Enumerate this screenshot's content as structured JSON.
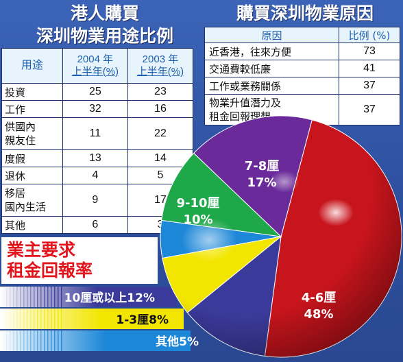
{
  "titles": {
    "left_line1": "港人購買",
    "left_line2": "深圳物業用途比例",
    "right": "購買深圳物業原因"
  },
  "usage_table": {
    "header_use": "用途",
    "header_2004": [
      "2004 年",
      "上半年(%)"
    ],
    "header_2003": [
      "2003 年",
      "上半年(%)"
    ],
    "rows": [
      {
        "label": [
          "投資"
        ],
        "v2004": "25",
        "v2003": "23"
      },
      {
        "label": [
          "工作"
        ],
        "v2004": "32",
        "v2003": "16"
      },
      {
        "label": [
          "供國內",
          "親友住"
        ],
        "v2004": "11",
        "v2003": "22"
      },
      {
        "label": [
          "度假"
        ],
        "v2004": "13",
        "v2003": "14"
      },
      {
        "label": [
          "退休"
        ],
        "v2004": "4",
        "v2003": "5"
      },
      {
        "label": [
          "移居",
          "國內生活"
        ],
        "v2004": "9",
        "v2003": "17"
      },
      {
        "label": [
          "其他"
        ],
        "v2004": "6",
        "v2003": "3"
      }
    ]
  },
  "reason_table": {
    "header_reason": "原因",
    "header_ratio": "比例 (%)",
    "rows": [
      {
        "label": [
          "近香港，往來方便"
        ],
        "value": "73"
      },
      {
        "label": [
          "交通費較低廉"
        ],
        "value": "41"
      },
      {
        "label": [
          "工作或業務關係"
        ],
        "value": "37"
      },
      {
        "label": [
          "物業升值潛力及",
          "租金回報理想"
        ],
        "value": "37"
      }
    ]
  },
  "owner_panel": {
    "line1": "業主要求",
    "line2": "租金回報率"
  },
  "chart_data": {
    "type": "pie",
    "slices": [
      {
        "label": "4-6厘",
        "value": 48,
        "text": "48%",
        "color": "#c8141c"
      },
      {
        "label": "10厘或以上",
        "value": 12,
        "text": "12%",
        "color": "#3a3a9a"
      },
      {
        "label": "1-3厘",
        "value": 8,
        "text": "8%",
        "color": "#f2e600"
      },
      {
        "label": "其他",
        "value": 5,
        "text": "5%",
        "color": "#1e88d8"
      },
      {
        "label": "9-10厘",
        "value": 10,
        "text": "10%",
        "color": "#1fa84a"
      },
      {
        "label": "7-8厘",
        "value": 17,
        "text": "17%",
        "color": "#6a2a9a"
      }
    ],
    "bands": [
      {
        "text": "10厘或以上12%",
        "color": "#3a3a9a"
      },
      {
        "text": "1-3厘8%",
        "color": "#f2e600"
      },
      {
        "text": "其他5%",
        "color": "#1e88d8"
      }
    ]
  }
}
